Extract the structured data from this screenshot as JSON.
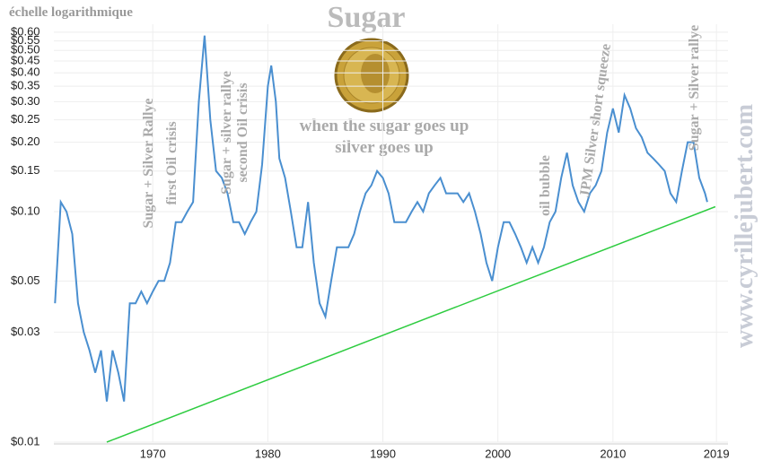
{
  "chart_data": {
    "type": "line",
    "title": "Sugar",
    "subtitle": [
      "when the sugar goes up",
      "silver goes up"
    ],
    "scale_note": "échelle logarithmique",
    "watermark": "www.cyrillejubert.com",
    "annotations": [
      "Sugar + Silver Rallye",
      "first Oil crisis",
      "Sugar + silver rallye",
      "second Oil crisis",
      "oil bubble",
      "JPM Silver  short squeeze",
      "Sugar + Silver rallye"
    ],
    "log_scale": true,
    "grid": true,
    "xlim": [
      1961.4,
      2020
    ],
    "xticks": [
      1970,
      1980,
      1990,
      2000,
      2010,
      2019
    ],
    "ylim": [
      0.01,
      0.65
    ],
    "yticks": [
      {
        "value": 0.01,
        "label": "$0.01"
      },
      {
        "value": 0.03,
        "label": "$0.03"
      },
      {
        "value": 0.05,
        "label": "$0.05"
      },
      {
        "value": 0.1,
        "label": "$0.10"
      },
      {
        "value": 0.15,
        "label": "$0.15"
      },
      {
        "value": 0.2,
        "label": "$0.20"
      },
      {
        "value": 0.25,
        "label": "$0.25"
      },
      {
        "value": 0.3,
        "label": "$0.30"
      },
      {
        "value": 0.35,
        "label": "$0.35"
      },
      {
        "value": 0.4,
        "label": "$0.40"
      },
      {
        "value": 0.45,
        "label": "$0.45"
      },
      {
        "value": 0.5,
        "label": "$0.50"
      },
      {
        "value": 0.55,
        "label": "$0.55"
      },
      {
        "value": 0.6,
        "label": "$0.60"
      }
    ],
    "x": [
      1961.5,
      1962,
      1962.5,
      1963,
      1963.5,
      1964,
      1964.5,
      1965,
      1965.5,
      1966,
      1966.5,
      1967,
      1967.5,
      1968,
      1968.5,
      1969,
      1969.5,
      1970,
      1970.5,
      1971,
      1971.5,
      1972,
      1972.5,
      1973,
      1973.5,
      1974,
      1974.5,
      1975,
      1975.5,
      1976,
      1976.5,
      1977,
      1977.5,
      1978,
      1978.5,
      1979,
      1979.5,
      1980,
      1980.3,
      1980.7,
      1981,
      1981.5,
      1982,
      1982.5,
      1983,
      1983.5,
      1984,
      1984.5,
      1985,
      1985.5,
      1986,
      1986.5,
      1987,
      1987.5,
      1988,
      1988.5,
      1989,
      1989.5,
      1990,
      1990.5,
      1991,
      1991.5,
      1992,
      1992.5,
      1993,
      1993.5,
      1994,
      1994.5,
      1995,
      1995.5,
      1996,
      1996.5,
      1997,
      1997.5,
      1998,
      1998.5,
      1999,
      1999.5,
      2000,
      2000.5,
      2001,
      2001.5,
      2002,
      2002.5,
      2003,
      2003.5,
      2004,
      2004.5,
      2005,
      2005.5,
      2006,
      2006.5,
      2007,
      2007.5,
      2008,
      2008.5,
      2009,
      2009.5,
      2010,
      2010.5,
      2011,
      2011.5,
      2012,
      2012.5,
      2013,
      2013.5,
      2014,
      2014.5,
      2015,
      2015.5,
      2016,
      2016.5,
      2017,
      2017.5,
      2018,
      2018.2
    ],
    "series": [
      {
        "color": "#4a8fd0",
        "values": [
          0.04,
          0.11,
          0.1,
          0.08,
          0.04,
          0.03,
          0.025,
          0.02,
          0.025,
          0.015,
          0.025,
          0.02,
          0.015,
          0.04,
          0.04,
          0.045,
          0.04,
          0.045,
          0.05,
          0.05,
          0.06,
          0.09,
          0.09,
          0.1,
          0.11,
          0.3,
          0.58,
          0.25,
          0.15,
          0.14,
          0.12,
          0.09,
          0.09,
          0.08,
          0.09,
          0.1,
          0.16,
          0.35,
          0.43,
          0.3,
          0.17,
          0.14,
          0.1,
          0.07,
          0.07,
          0.11,
          0.06,
          0.04,
          0.035,
          0.05,
          0.07,
          0.07,
          0.07,
          0.08,
          0.1,
          0.12,
          0.13,
          0.15,
          0.14,
          0.12,
          0.09,
          0.09,
          0.09,
          0.1,
          0.11,
          0.1,
          0.12,
          0.13,
          0.14,
          0.12,
          0.12,
          0.12,
          0.11,
          0.12,
          0.1,
          0.08,
          0.06,
          0.05,
          0.07,
          0.09,
          0.09,
          0.08,
          0.07,
          0.06,
          0.07,
          0.06,
          0.07,
          0.09,
          0.1,
          0.14,
          0.18,
          0.13,
          0.11,
          0.1,
          0.12,
          0.13,
          0.15,
          0.22,
          0.28,
          0.22,
          0.32,
          0.28,
          0.23,
          0.21,
          0.18,
          0.17,
          0.16,
          0.15,
          0.12,
          0.11,
          0.15,
          0.2,
          0.2,
          0.14,
          0.12,
          0.11
        ]
      }
    ],
    "trend_line": {
      "color": "#2ecc40",
      "x": [
        1966,
        2018.9
      ],
      "values": [
        0.01,
        0.105
      ]
    }
  }
}
